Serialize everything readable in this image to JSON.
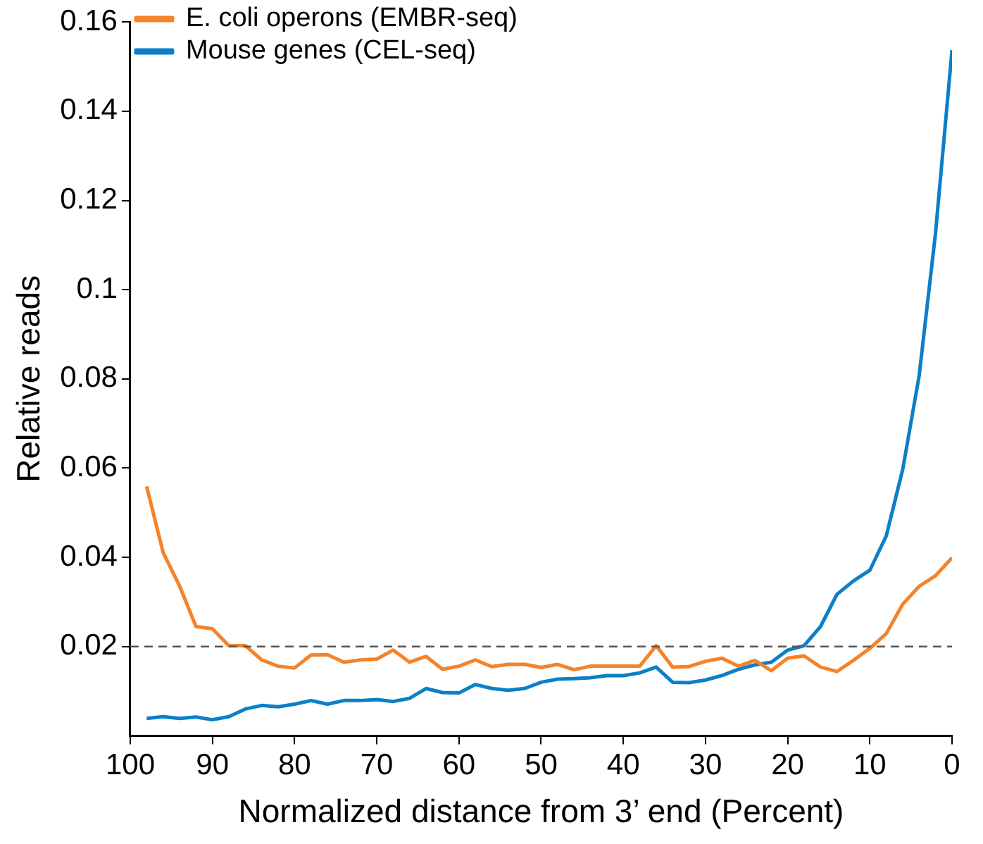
{
  "chart_data": {
    "type": "line",
    "xlabel": "Normalized distance from 3’ end (Percent)",
    "ylabel": "Relative reads",
    "x": [
      98,
      96,
      94,
      92,
      90,
      88,
      86,
      84,
      82,
      80,
      78,
      76,
      74,
      72,
      70,
      68,
      66,
      64,
      62,
      60,
      58,
      56,
      54,
      52,
      50,
      48,
      46,
      44,
      42,
      40,
      38,
      36,
      34,
      32,
      30,
      28,
      26,
      24,
      22,
      20,
      18,
      16,
      14,
      12,
      10,
      8,
      6,
      4,
      2,
      0
    ],
    "series": [
      {
        "name": "E. coli operons (EMBR-seq)",
        "color": "#f5832a",
        "values": [
          0.0559,
          0.0411,
          0.0336,
          0.0245,
          0.024,
          0.0202,
          0.0202,
          0.017,
          0.0156,
          0.0152,
          0.0181,
          0.0182,
          0.0165,
          0.017,
          0.0172,
          0.0192,
          0.0165,
          0.0178,
          0.0149,
          0.0156,
          0.017,
          0.0155,
          0.016,
          0.016,
          0.0153,
          0.016,
          0.0148,
          0.0156,
          0.0156,
          0.0156,
          0.0156,
          0.0202,
          0.0154,
          0.0155,
          0.0167,
          0.0174,
          0.0156,
          0.0169,
          0.0146,
          0.0174,
          0.0179,
          0.0154,
          0.0144,
          0.0169,
          0.0196,
          0.0229,
          0.0295,
          0.0335,
          0.0359,
          0.0399
        ]
      },
      {
        "name": "Mouse genes (CEL-seq)",
        "color": "#0b7fc7",
        "values": [
          0.0039,
          0.0043,
          0.0039,
          0.0042,
          0.0036,
          0.0043,
          0.006,
          0.0068,
          0.0065,
          0.0071,
          0.0079,
          0.0071,
          0.0079,
          0.0079,
          0.0081,
          0.0077,
          0.0084,
          0.0106,
          0.0097,
          0.0096,
          0.0115,
          0.0106,
          0.0102,
          0.0106,
          0.012,
          0.0127,
          0.0128,
          0.013,
          0.0135,
          0.0135,
          0.0141,
          0.0154,
          0.012,
          0.0119,
          0.0125,
          0.0135,
          0.0149,
          0.0159,
          0.0165,
          0.0192,
          0.0202,
          0.0245,
          0.0317,
          0.0347,
          0.0371,
          0.0448,
          0.0597,
          0.0807,
          0.1128,
          0.1537
        ]
      }
    ],
    "xlim": [
      100,
      0
    ],
    "xticks": [
      100,
      90,
      80,
      70,
      60,
      50,
      40,
      30,
      20,
      10,
      0
    ],
    "ylim": [
      0,
      0.16
    ],
    "yticks": [
      0.02,
      0.04,
      0.06,
      0.08,
      0.1,
      0.12,
      0.14,
      0.16
    ],
    "ref_lines": [
      {
        "axis": "y",
        "value": 0.02,
        "color": "#555555",
        "line_style": "dashed"
      }
    ],
    "grid": false,
    "legend": "top left",
    "marker": "none",
    "line_style": "solid"
  }
}
